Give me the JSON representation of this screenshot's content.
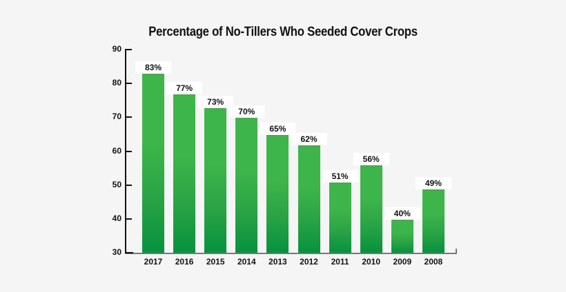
{
  "chart_data": {
    "type": "bar",
    "title": "Percentage of No-Tillers Who Seeded Cover Crops",
    "xlabel": "",
    "ylabel": "",
    "categories": [
      "2017",
      "2016",
      "2015",
      "2014",
      "2013",
      "2012",
      "2011",
      "2010",
      "2009",
      "2008"
    ],
    "values": [
      83,
      77,
      73,
      70,
      65,
      62,
      51,
      56,
      40,
      49
    ],
    "value_labels": [
      "83%",
      "77%",
      "73%",
      "70%",
      "65%",
      "62%",
      "51%",
      "56%",
      "40%",
      "49%"
    ],
    "ylim": [
      30,
      90
    ],
    "yticks": [
      90,
      80,
      70,
      60,
      50,
      40,
      30
    ],
    "grid": false,
    "legend": null,
    "bar_color": "#3db54a",
    "bar_color_bottom": "#06923e"
  }
}
